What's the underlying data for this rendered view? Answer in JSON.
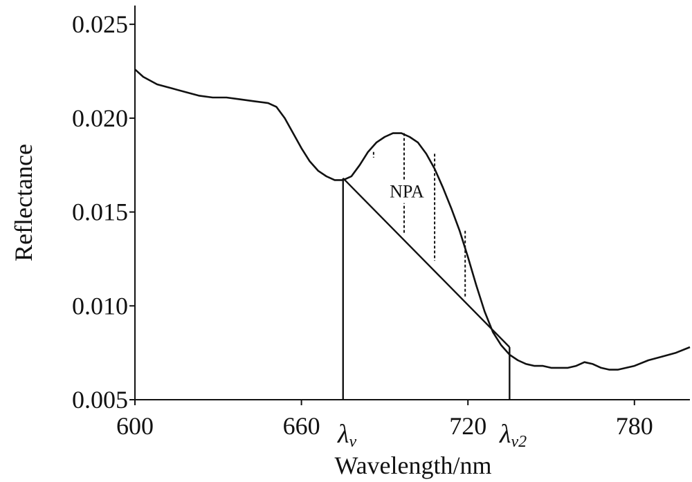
{
  "chart_data": {
    "type": "line",
    "title": "",
    "xlabel": "Wavelength/nm",
    "ylabel": "Reflectance",
    "xlim": [
      600,
      800
    ],
    "ylim": [
      0.005,
      0.026
    ],
    "x_ticks": [
      600,
      660,
      720,
      780
    ],
    "x_tick_labels": [
      "600",
      "660",
      "720",
      "780"
    ],
    "y_ticks": [
      0.005,
      0.01,
      0.015,
      0.02,
      0.025
    ],
    "y_tick_labels": [
      "0.005",
      "0.010",
      "0.015",
      "0.020",
      "0.025"
    ],
    "grid": false,
    "series": [
      {
        "x": [
          600,
          603,
          608,
          613,
          618,
          623,
          628,
          633,
          638,
          643,
          648,
          651,
          654,
          657,
          660,
          663,
          666,
          669,
          672,
          675,
          678,
          681,
          684,
          687,
          690,
          693,
          696,
          699,
          702,
          705,
          708,
          711,
          714,
          717,
          720,
          723,
          726,
          729,
          732,
          735,
          738,
          741,
          744,
          747,
          750,
          753,
          756,
          759,
          762,
          765,
          768,
          771,
          774,
          777,
          780,
          785,
          790,
          795,
          800
        ],
        "y": [
          0.0226,
          0.0222,
          0.0218,
          0.0216,
          0.0214,
          0.0212,
          0.0211,
          0.0211,
          0.021,
          0.0209,
          0.0208,
          0.0206,
          0.02,
          0.0192,
          0.0184,
          0.0177,
          0.0172,
          0.0169,
          0.0167,
          0.0167,
          0.0169,
          0.0175,
          0.0182,
          0.0187,
          0.019,
          0.0192,
          0.0192,
          0.019,
          0.0187,
          0.0181,
          0.0173,
          0.0163,
          0.0152,
          0.014,
          0.0126,
          0.0111,
          0.0097,
          0.0086,
          0.0079,
          0.0074,
          0.0071,
          0.0069,
          0.0068,
          0.0068,
          0.0067,
          0.0067,
          0.0067,
          0.0068,
          0.007,
          0.0069,
          0.0067,
          0.0066,
          0.0066,
          0.0067,
          0.0068,
          0.0071,
          0.0073,
          0.0075,
          0.0078
        ]
      }
    ],
    "lambda_v": 675,
    "lambda_v2": 735,
    "baseline": {
      "x": [
        675,
        735
      ],
      "y": [
        0.0168,
        0.0078
      ]
    },
    "dotted_markers": [
      {
        "x": 686,
        "y_top": 0.0182,
        "y_bottom": 0.0179
      },
      {
        "x": 697,
        "y_top": 0.0192,
        "y_bottom": 0.0138
      },
      {
        "x": 708,
        "y_top": 0.0181,
        "y_bottom": 0.0124
      },
      {
        "x": 719,
        "y_top": 0.014,
        "y_bottom": 0.0105
      }
    ],
    "annotations": {
      "npa_label": "NPA",
      "npa_at": [
        698,
        0.0161
      ],
      "lambda_symbol": "λ",
      "lambda_v_sub": "v",
      "lambda_v2_sub": "v2"
    }
  }
}
